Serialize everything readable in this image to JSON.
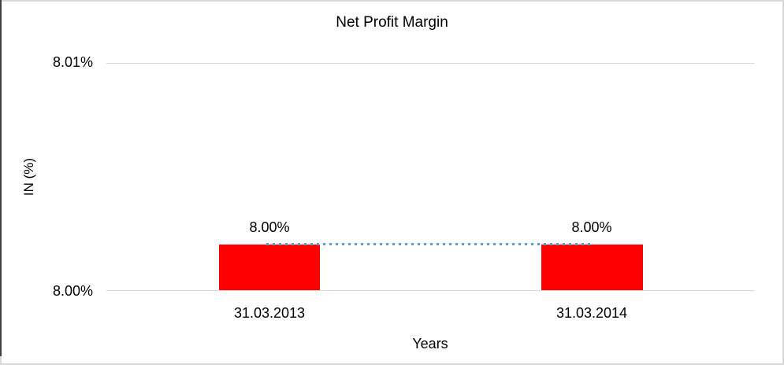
{
  "chart_data": {
    "type": "bar",
    "title": "Net Profit Margin",
    "xlabel": "Years",
    "ylabel": "IN (%)",
    "categories": [
      "31.03.2013",
      "31.03.2014"
    ],
    "series": [
      {
        "name": "Net Profit Margin",
        "values": [
          8.002,
          8.002
        ]
      }
    ],
    "values": [
      8.002,
      8.002
    ],
    "data_labels": [
      "8.00%",
      "8.00%"
    ],
    "yticks": [
      "8.01%",
      "8.00%"
    ],
    "ylim": [
      8.0,
      8.01
    ],
    "grid": true,
    "legend": false,
    "trendline": {
      "style": "dotted",
      "between": [
        "31.03.2013",
        "31.03.2014"
      ]
    },
    "colors": {
      "bar": "#ff0000",
      "trendline": "#5b9bd5",
      "gridline": "#d9d9d9",
      "text": "#000000",
      "frame_border": "#d9d9d9",
      "left_rule": "#3f3f3f"
    }
  }
}
